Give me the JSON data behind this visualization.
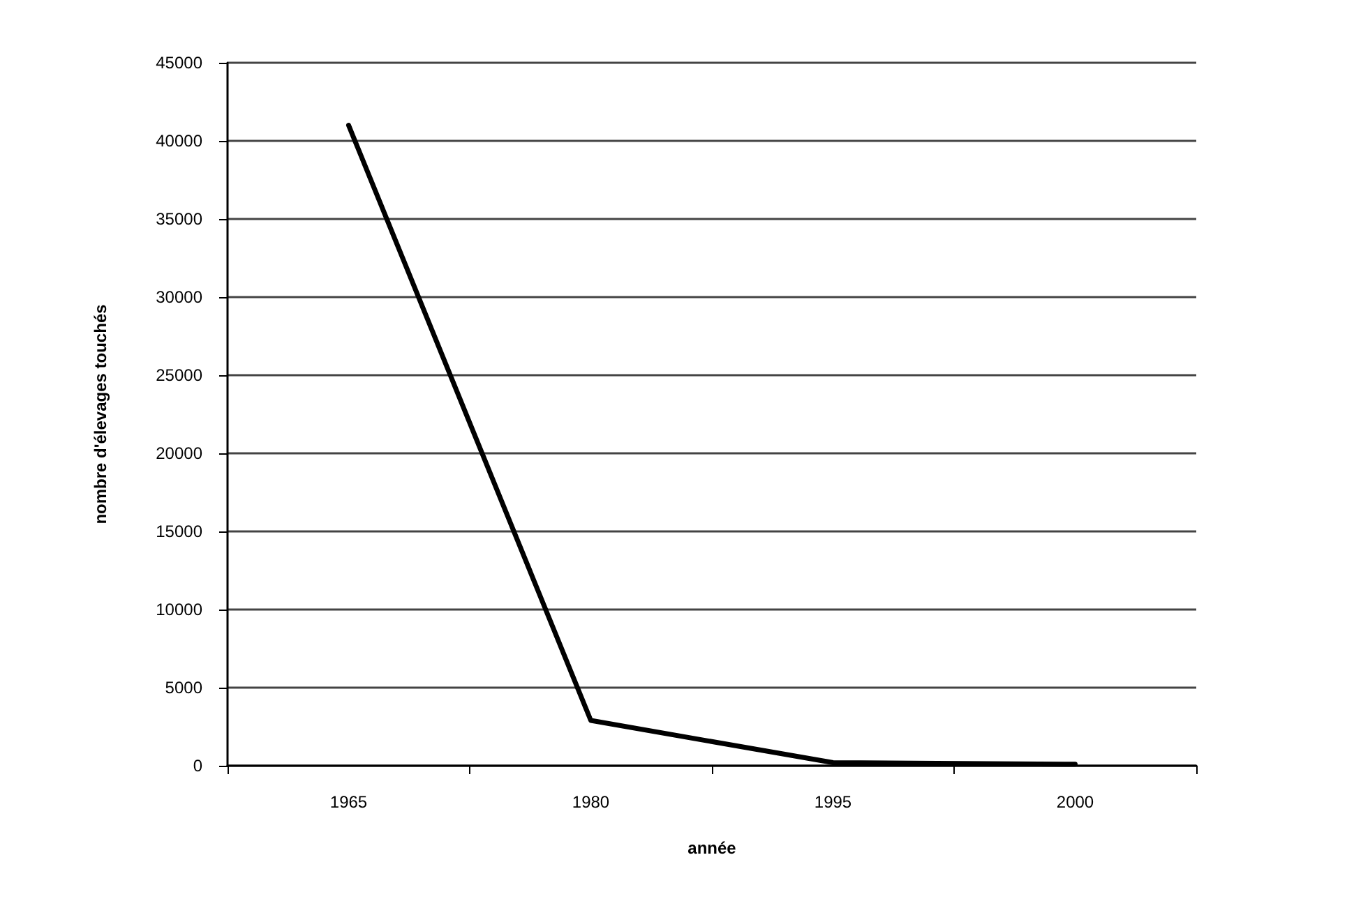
{
  "chart_data": {
    "type": "line",
    "xlabel": "année",
    "ylabel": "nombre d'élevages touchés",
    "categories": [
      "1965",
      "1980",
      "1995",
      "2000"
    ],
    "series": [
      {
        "color": "#000000",
        "values": [
          41000,
          2900,
          200,
          100
        ]
      }
    ],
    "ylim": [
      0,
      45000
    ],
    "yticks": [
      0,
      5000,
      10000,
      15000,
      20000,
      25000,
      30000,
      35000,
      40000,
      45000
    ],
    "grid": "y",
    "marker": "none",
    "line_style": "solid"
  }
}
